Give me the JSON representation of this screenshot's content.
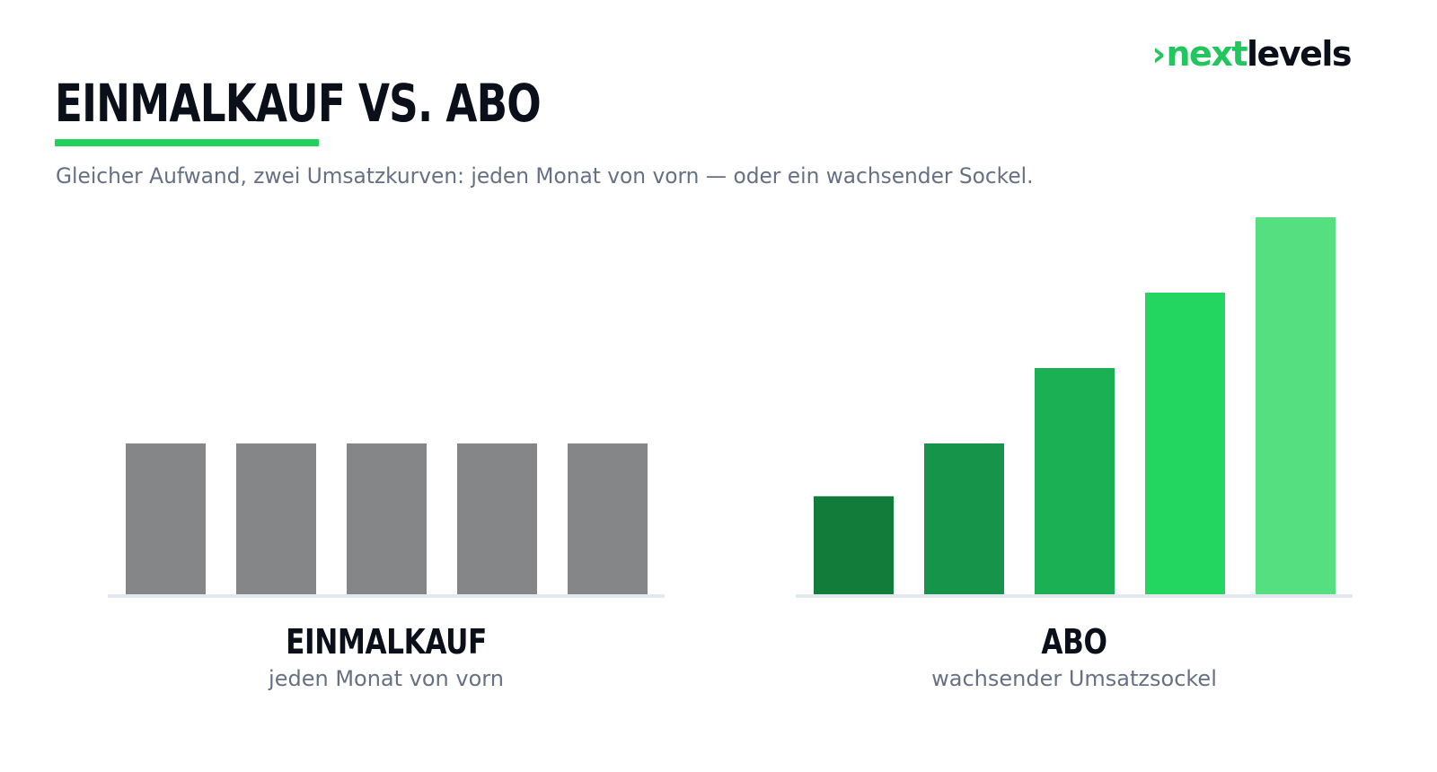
{
  "logo": {
    "chevron": "›",
    "accent": "next",
    "rest": "levels",
    "accent_color": "#22c55e",
    "rest_color": "#0b0f19"
  },
  "title": "EINMALKAUF VS. ABO",
  "subtitle": "Gleicher Aufwand, zwei Umsatzkurven: jeden Monat von vorn — oder ein wachsender Sockel.",
  "chart_data": [
    {
      "type": "bar",
      "title": "EINMALKAUF",
      "subtitle": "jeden Monat von vorn",
      "categories": [
        "1",
        "2",
        "3",
        "4",
        "5"
      ],
      "values": [
        2,
        2,
        2,
        2,
        2
      ],
      "ylim": [
        0,
        5
      ],
      "colors": [
        "#858687",
        "#858687",
        "#858687",
        "#858687",
        "#858687"
      ],
      "grid": false,
      "axis_labels_visible": false
    },
    {
      "type": "bar",
      "title": "ABO",
      "subtitle": "wachsender Umsatzsockel",
      "categories": [
        "1",
        "2",
        "3",
        "4",
        "5"
      ],
      "values": [
        1.3,
        2,
        3,
        4,
        5
      ],
      "ylim": [
        0,
        5
      ],
      "colors": [
        "#127c3a",
        "#15944a",
        "#1cb055",
        "#22d65f",
        "#55df80"
      ],
      "grid": false,
      "axis_labels_visible": false
    }
  ]
}
